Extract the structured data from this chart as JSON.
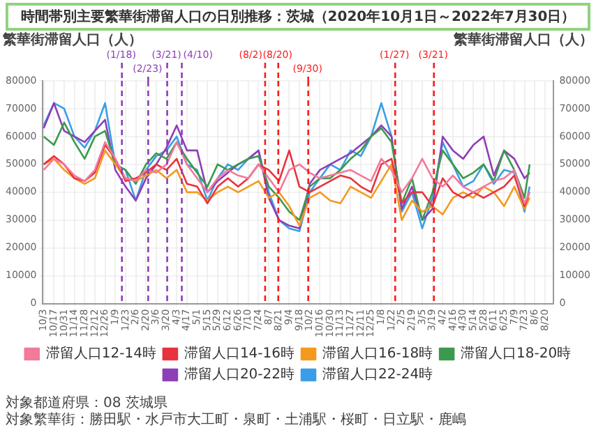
{
  "chart_data": {
    "type": "line",
    "title": "時間帯別主要繁華街滞留人口の日別推移：茨城（2020年10月1日～2022年7月30日）",
    "ylabel": "繁華街滞留人口（人）",
    "y2label": "繁華街滞留人口（人）",
    "x": [
      "2020-10-03",
      "2020-10-17",
      "2020-10-31",
      "2020-11-14",
      "2020-11-28",
      "2020-12-12",
      "2020-12-26",
      "2021-01-09",
      "2021-01-23",
      "2021-02-06",
      "2021-02-20",
      "2021-03-06",
      "2021-03-20",
      "2021-04-03",
      "2021-04-17",
      "2021-05-01",
      "2021-05-15",
      "2021-05-29",
      "2021-06-12",
      "2021-06-26",
      "2021-07-10",
      "2021-07-24",
      "2021-08-07",
      "2021-08-21",
      "2021-09-04",
      "2021-09-18",
      "2021-10-02",
      "2021-10-16",
      "2021-10-30",
      "2021-11-13",
      "2021-11-27",
      "2021-12-11",
      "2021-12-25",
      "2022-01-08",
      "2022-01-22",
      "2022-02-05",
      "2022-02-19",
      "2022-03-05",
      "2022-03-19",
      "2022-04-02",
      "2022-04-16",
      "2022-04-30",
      "2022-05-14",
      "2022-05-28",
      "2022-06-11",
      "2022-06-25",
      "2022-07-09",
      "2022-07-23",
      "2022-07-30"
    ],
    "series": [
      {
        "name": "滞留人口12-14時",
        "color": "#f27a9b",
        "values": [
          48000,
          52000,
          50000,
          46000,
          44000,
          48000,
          58000,
          52000,
          45000,
          44000,
          48000,
          47000,
          50000,
          58000,
          50000,
          45000,
          40000,
          45000,
          48000,
          46000,
          45000,
          50000,
          45000,
          40000,
          48000,
          50000,
          47000,
          45000,
          46000,
          47000,
          48000,
          46000,
          44000,
          52000,
          48000,
          40000,
          45000,
          52000,
          45000,
          42000,
          46000,
          42000,
          40000,
          42000,
          44000,
          45000,
          48000,
          36000,
          40000
        ]
      },
      {
        "name": "滞留人口14-16時",
        "color": "#e8323f",
        "values": [
          50000,
          53000,
          50000,
          45000,
          44000,
          47000,
          57000,
          52000,
          44000,
          45000,
          47000,
          50000,
          48000,
          52000,
          43000,
          42000,
          36000,
          42000,
          45000,
          42000,
          45000,
          50000,
          48000,
          44000,
          55000,
          42000,
          40000,
          42000,
          44000,
          46000,
          45000,
          42000,
          40000,
          50000,
          52000,
          36000,
          40000,
          40000,
          35000,
          45000,
          40000,
          38000,
          40000,
          38000,
          40000,
          42000,
          46000,
          35000,
          40000
        ]
      },
      {
        "name": "滞留人口16-18時",
        "color": "#f39a1e",
        "values": [
          50000,
          52000,
          48000,
          45000,
          43000,
          45000,
          55000,
          50000,
          45000,
          44000,
          46000,
          48000,
          45000,
          48000,
          40000,
          40000,
          37000,
          40000,
          42000,
          40000,
          42000,
          44000,
          38000,
          40000,
          35000,
          28000,
          38000,
          40000,
          37000,
          36000,
          42000,
          40000,
          38000,
          44000,
          50000,
          30000,
          37000,
          33000,
          35000,
          32000,
          38000,
          40000,
          38000,
          42000,
          40000,
          35000,
          42000,
          34000,
          38000
        ]
      },
      {
        "name": "滞留人口18-20時",
        "color": "#3b9a4e",
        "values": [
          60000,
          57000,
          65000,
          58000,
          52000,
          60000,
          62000,
          50000,
          48000,
          43000,
          50000,
          54000,
          52000,
          58000,
          52000,
          47000,
          42000,
          50000,
          48000,
          50000,
          52000,
          53000,
          42000,
          38000,
          33000,
          30000,
          42000,
          45000,
          45000,
          48000,
          52000,
          55000,
          60000,
          63000,
          58000,
          36000,
          45000,
          30000,
          40000,
          55000,
          50000,
          45000,
          47000,
          50000,
          44000,
          55000,
          48000,
          38000,
          50000
        ]
      },
      {
        "name": "滞留人口20-22時",
        "color": "#8e3fb6",
        "values": [
          63000,
          72000,
          62000,
          60000,
          58000,
          62000,
          66000,
          48000,
          42000,
          37000,
          45000,
          50000,
          56000,
          64000,
          55000,
          55000,
          40000,
          44000,
          47000,
          50000,
          52000,
          55000,
          38000,
          30000,
          28000,
          27000,
          43000,
          48000,
          50000,
          52000,
          54000,
          57000,
          60000,
          64000,
          60000,
          34000,
          42000,
          30000,
          34000,
          60000,
          55000,
          52000,
          57000,
          60000,
          46000,
          55000,
          52000,
          45000,
          47000
        ]
      },
      {
        "name": "滞留人口22-24時",
        "color": "#3b9de8",
        "values": [
          64000,
          72000,
          70000,
          60000,
          56000,
          62000,
          72000,
          50000,
          48000,
          37000,
          48000,
          53000,
          55000,
          60000,
          50000,
          48000,
          37000,
          45000,
          50000,
          48000,
          52000,
          55000,
          40000,
          30000,
          27000,
          26000,
          40000,
          45000,
          50000,
          48000,
          55000,
          53000,
          60000,
          72000,
          60000,
          33000,
          40000,
          27000,
          38000,
          58000,
          50000,
          42000,
          44000,
          50000,
          43000,
          48000,
          47000,
          33000,
          42000
        ]
      }
    ],
    "xlim": [
      "2020-10-01",
      "2022-09-01"
    ],
    "xticks": [
      {
        "value": "2020-10-03",
        "label": "10/3"
      },
      {
        "value": "2020-10-17",
        "label": "10/17"
      },
      {
        "value": "2020-10-31",
        "label": "10/31"
      },
      {
        "value": "2020-11-14",
        "label": "11/14"
      },
      {
        "value": "2020-11-28",
        "label": "11/28"
      },
      {
        "value": "2020-12-12",
        "label": "12/12"
      },
      {
        "value": "2020-12-26",
        "label": "12/26"
      },
      {
        "value": "2021-01-09",
        "label": "1/9"
      },
      {
        "value": "2021-01-23",
        "label": "1/23"
      },
      {
        "value": "2021-02-06",
        "label": "2/6"
      },
      {
        "value": "2021-02-20",
        "label": "2/20"
      },
      {
        "value": "2021-03-06",
        "label": "3/6"
      },
      {
        "value": "2021-03-20",
        "label": "3/20"
      },
      {
        "value": "2021-04-03",
        "label": "4/3"
      },
      {
        "value": "2021-04-17",
        "label": "4/17"
      },
      {
        "value": "2021-05-01",
        "label": "5/1"
      },
      {
        "value": "2021-05-15",
        "label": "5/15"
      },
      {
        "value": "2021-05-29",
        "label": "5/29"
      },
      {
        "value": "2021-06-12",
        "label": "6/12"
      },
      {
        "value": "2021-06-26",
        "label": "6/26"
      },
      {
        "value": "2021-07-10",
        "label": "7/10"
      },
      {
        "value": "2021-07-24",
        "label": "7/24"
      },
      {
        "value": "2021-08-07",
        "label": "8/7"
      },
      {
        "value": "2021-08-21",
        "label": "8/21"
      },
      {
        "value": "2021-09-04",
        "label": "9/4"
      },
      {
        "value": "2021-09-18",
        "label": "9/18"
      },
      {
        "value": "2021-10-02",
        "label": "10/2"
      },
      {
        "value": "2021-10-16",
        "label": "10/16"
      },
      {
        "value": "2021-10-30",
        "label": "10/30"
      },
      {
        "value": "2021-11-13",
        "label": "11/13"
      },
      {
        "value": "2021-11-27",
        "label": "11/27"
      },
      {
        "value": "2021-12-11",
        "label": "12/11"
      },
      {
        "value": "2021-12-25",
        "label": "12/25"
      },
      {
        "value": "2022-01-08",
        "label": "1/8"
      },
      {
        "value": "2022-01-22",
        "label": "1/22"
      },
      {
        "value": "2022-02-05",
        "label": "2/5"
      },
      {
        "value": "2022-02-19",
        "label": "2/19"
      },
      {
        "value": "2022-03-05",
        "label": "3/5"
      },
      {
        "value": "2022-03-19",
        "label": "3/19"
      },
      {
        "value": "2022-04-02",
        "label": "4/2"
      },
      {
        "value": "2022-04-16",
        "label": "4/16"
      },
      {
        "value": "2022-04-30",
        "label": "4/30"
      },
      {
        "value": "2022-05-14",
        "label": "5/14"
      },
      {
        "value": "2022-05-28",
        "label": "5/28"
      },
      {
        "value": "2022-06-11",
        "label": "6/11"
      },
      {
        "value": "2022-06-25",
        "label": "6/25"
      },
      {
        "value": "2022-07-09",
        "label": "7/9"
      },
      {
        "value": "2022-07-23",
        "label": "7/23"
      },
      {
        "value": "2022-08-06",
        "label": "8/6"
      },
      {
        "value": "2022-08-20",
        "label": "8/20"
      }
    ],
    "ylim": [
      0,
      80000
    ],
    "yticks": [
      0,
      10000,
      20000,
      30000,
      40000,
      50000,
      60000,
      70000,
      80000
    ],
    "y2lim": [
      0,
      80000
    ],
    "y2ticks": [
      0,
      10000,
      20000,
      30000,
      40000,
      50000,
      60000,
      70000,
      80000
    ],
    "ref_lines": [
      {
        "axis": "x",
        "value": "2021-01-18",
        "label": "(1/18)",
        "color": "#8e3fb6",
        "line_style": "dashed"
      },
      {
        "axis": "x",
        "value": "2021-02-23",
        "label": "(2/23)",
        "color": "#8e3fb6",
        "line_style": "dashed"
      },
      {
        "axis": "x",
        "value": "2021-03-21",
        "label": "(3/21)",
        "color": "#8e3fb6",
        "line_style": "dashed"
      },
      {
        "axis": "x",
        "value": "2021-04-10",
        "label": "(4/10)",
        "color": "#8e3fb6",
        "line_style": "dashed"
      },
      {
        "axis": "x",
        "value": "2021-08-02",
        "label": "(8/2)",
        "color": "#ff1a1a",
        "line_style": "dashed"
      },
      {
        "axis": "x",
        "value": "2021-08-20",
        "label": "(8/20)",
        "color": "#ff1a1a",
        "line_style": "dashed"
      },
      {
        "axis": "x",
        "value": "2021-09-30",
        "label": "(9/30)",
        "color": "#ff1a1a",
        "line_style": "dashed"
      },
      {
        "axis": "x",
        "value": "2022-01-27",
        "label": "(1/27)",
        "color": "#ff1a1a",
        "line_style": "dashed"
      },
      {
        "axis": "x",
        "value": "2022-03-21",
        "label": "(3/21)",
        "color": "#ff1a1a",
        "line_style": "dashed"
      }
    ],
    "annotations": [
      "対象都道府県：08 茨城県",
      "対象繁華街：勝田駅・水戸市大工町・泉町・土浦駅・桜町・日立駅・鹿嶋"
    ],
    "grid": true,
    "legend": "bottom"
  }
}
